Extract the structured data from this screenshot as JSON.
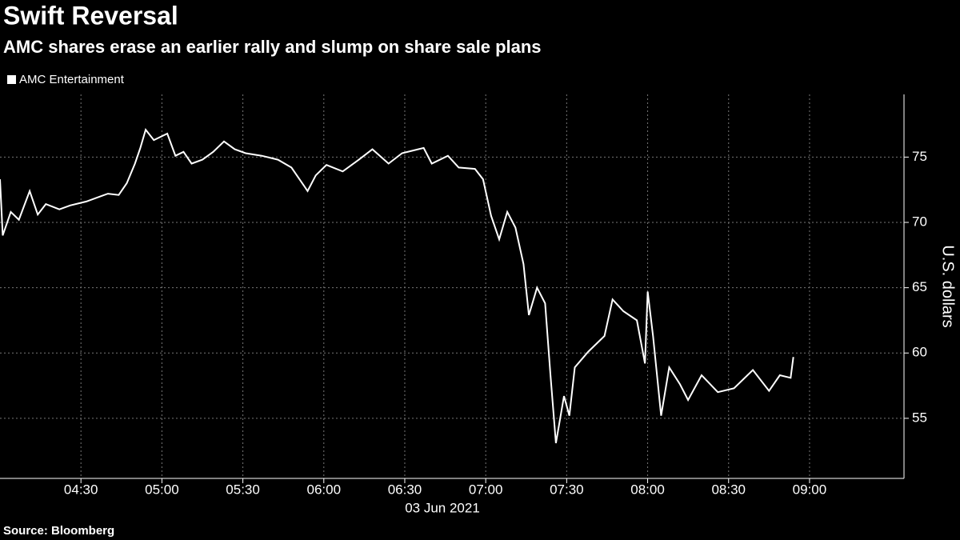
{
  "chart_data": {
    "type": "line",
    "title": "Swift Reversal",
    "subtitle": "AMC shares erase an earlier rally and slump on share sale plans",
    "xlabel": "03 Jun 2021",
    "ylabel": "U.S. dollars",
    "source": "Source: Bloomberg",
    "x": [
      "04:00",
      "04:01",
      "04:04",
      "04:07",
      "04:11",
      "04:14",
      "04:17",
      "04:22",
      "04:26",
      "04:32",
      "04:40",
      "04:44",
      "04:47",
      "04:50",
      "04:52",
      "04:54",
      "04:57",
      "05:02",
      "05:05",
      "05:08",
      "05:11",
      "05:15",
      "05:19",
      "05:23",
      "05:27",
      "05:31",
      "05:37",
      "05:43",
      "05:48",
      "05:54",
      "05:57",
      "06:01",
      "06:07",
      "06:13",
      "06:18",
      "06:24",
      "06:29",
      "06:37",
      "06:40",
      "06:46",
      "06:50",
      "06:56",
      "06:59",
      "07:02",
      "07:05",
      "07:08",
      "07:11",
      "07:14",
      "07:16",
      "07:19",
      "07:22",
      "07:24",
      "07:26",
      "07:29",
      "07:31",
      "07:33",
      "07:38",
      "07:44",
      "07:47",
      "07:51",
      "07:56",
      "07:59",
      "08:00",
      "08:02",
      "08:05",
      "08:08",
      "08:12",
      "08:15",
      "08:20",
      "08:26",
      "08:32",
      "08:39",
      "08:45",
      "08:49",
      "08:53",
      "08:54"
    ],
    "series": [
      {
        "name": "AMC Entertainment",
        "color": "#ffffff",
        "values": [
          73.3,
          69,
          70.8,
          70.2,
          72.4,
          70.6,
          71.4,
          71,
          71.3,
          71.6,
          72.2,
          72.1,
          73,
          74.5,
          75.7,
          77.1,
          76.3,
          76.8,
          75.1,
          75.4,
          74.5,
          74.8,
          75.4,
          76.2,
          75.6,
          75.3,
          75.1,
          74.8,
          74.2,
          72.4,
          73.6,
          74.4,
          73.9,
          74.8,
          75.6,
          74.5,
          75.3,
          75.7,
          74.5,
          75.1,
          74.2,
          74.1,
          73.3,
          70.5,
          68.7,
          70.8,
          69.6,
          66.8,
          62.9,
          65,
          63.8,
          58.3,
          53.1,
          56.7,
          55.2,
          58.9,
          60.1,
          61.3,
          64.1,
          63.2,
          62.5,
          59.2,
          64.7,
          61.3,
          55.2,
          58.9,
          57.6,
          56.4,
          58.3,
          57,
          57.3,
          58.7,
          57.1,
          58.3,
          58.1,
          59.7
        ]
      }
    ],
    "xlim": [
      "04:00",
      "09:35"
    ],
    "xticks": [
      "04:30",
      "05:00",
      "05:30",
      "06:00",
      "06:30",
      "07:00",
      "07:30",
      "08:00",
      "08:30",
      "09:00"
    ],
    "ylim": [
      50.4,
      79.8
    ],
    "yticks": [
      55,
      60,
      65,
      70,
      75
    ],
    "grid": true
  }
}
